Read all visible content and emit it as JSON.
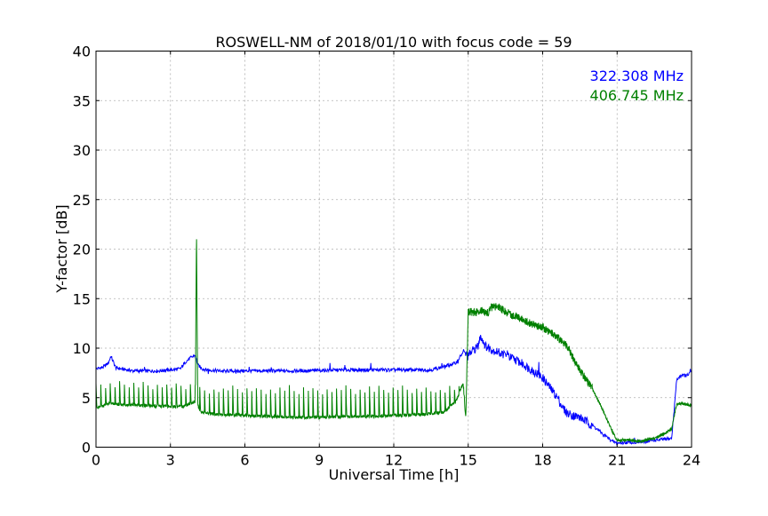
{
  "chart_data": {
    "type": "line",
    "title": "ROSWELL-NM of 2018/01/10 with focus code = 59",
    "xlabel": "Universal Time [h]",
    "ylabel": "Y-factor [dB]",
    "xlim": [
      0,
      24
    ],
    "ylim": [
      0,
      40
    ],
    "x_ticks": [
      0,
      3,
      6,
      9,
      12,
      15,
      18,
      21,
      24
    ],
    "y_ticks": [
      0,
      5,
      10,
      15,
      20,
      25,
      30,
      35,
      40
    ],
    "x_tick_labels": [
      "0",
      "3",
      "6",
      "9",
      "12",
      "15",
      "18",
      "21",
      "24"
    ],
    "y_tick_labels": [
      "0",
      "5",
      "10",
      "15",
      "20",
      "25",
      "30",
      "35",
      "40"
    ],
    "grid": true,
    "legend_position": "top-right",
    "series": [
      {
        "name": "322.308 MHz",
        "color": "#0000ff",
        "x": [
          0.0,
          0.3,
          0.5,
          0.6,
          0.8,
          1.5,
          2.5,
          3.4,
          3.6,
          3.8,
          4.0,
          4.1,
          4.3,
          4.5,
          5.0,
          6.0,
          8.0,
          10.0,
          12.0,
          13.5,
          14.0,
          14.5,
          14.8,
          14.9,
          15.0,
          15.2,
          15.4,
          15.5,
          15.7,
          16.0,
          16.5,
          17.0,
          17.5,
          18.0,
          18.3,
          18.6,
          18.8,
          19.0,
          19.5,
          20.0,
          20.5,
          20.8,
          21.0,
          21.5,
          22.0,
          22.5,
          23.0,
          23.2,
          23.4,
          23.6,
          23.8,
          24.0
        ],
        "y": [
          7.9,
          8.1,
          8.5,
          9.2,
          8.0,
          7.7,
          7.7,
          7.9,
          8.6,
          9.0,
          9.3,
          8.3,
          7.9,
          7.8,
          7.7,
          7.7,
          7.7,
          7.8,
          7.8,
          7.8,
          8.1,
          8.5,
          9.6,
          9.4,
          9.2,
          9.8,
          10.2,
          11.3,
          10.2,
          9.8,
          9.3,
          8.7,
          7.9,
          7.0,
          6.0,
          5.0,
          4.0,
          3.4,
          3.0,
          2.2,
          1.2,
          0.6,
          0.4,
          0.5,
          0.5,
          0.7,
          0.8,
          0.9,
          6.8,
          7.3,
          7.2,
          7.6
        ]
      },
      {
        "name": "406.745 MHz",
        "color": "#008000",
        "x": [
          0.0,
          0.5,
          1.0,
          2.0,
          3.0,
          3.5,
          3.8,
          4.0,
          4.05,
          4.1,
          4.15,
          4.2,
          4.5,
          5.0,
          6.0,
          7.0,
          8.0,
          9.0,
          10.0,
          11.0,
          12.0,
          13.0,
          13.5,
          14.0,
          14.5,
          14.8,
          14.9,
          15.0,
          15.3,
          15.5,
          15.8,
          16.0,
          16.3,
          16.6,
          17.0,
          17.5,
          18.0,
          18.5,
          19.0,
          19.3,
          19.6,
          20.0,
          20.3,
          20.5,
          20.8,
          21.0,
          21.5,
          22.0,
          22.5,
          23.0,
          23.2,
          23.4,
          23.6,
          23.8,
          24.0
        ],
        "y": [
          3.9,
          4.4,
          4.3,
          4.2,
          4.1,
          4.1,
          4.4,
          4.6,
          21.8,
          4.4,
          3.9,
          3.6,
          3.4,
          3.3,
          3.2,
          3.1,
          3.0,
          3.0,
          3.1,
          3.1,
          3.2,
          3.3,
          3.4,
          3.5,
          4.6,
          6.5,
          2.7,
          13.7,
          13.6,
          13.8,
          13.6,
          14.3,
          14.0,
          13.5,
          13.1,
          12.5,
          12.1,
          11.3,
          10.2,
          8.6,
          7.4,
          5.9,
          4.4,
          3.3,
          1.6,
          0.7,
          0.7,
          0.6,
          0.9,
          1.5,
          1.8,
          4.4,
          4.4,
          4.3,
          4.2
        ]
      }
    ],
    "annotations": [
      "Periodic sawtooth-like oscillations visible on 406.745 MHz between 0-14.8 h with peaks near 6 dB"
    ]
  }
}
